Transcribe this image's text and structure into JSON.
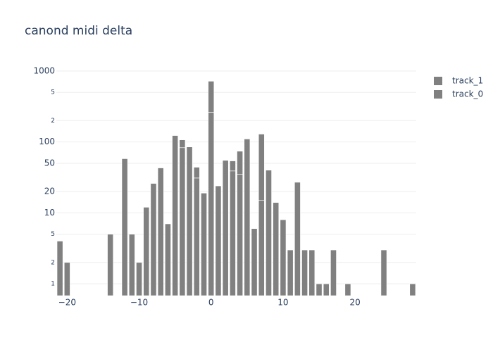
{
  "chart_data": {
    "type": "bar",
    "title": "canond midi delta",
    "x": [
      -21,
      -20,
      -14,
      -12,
      -11,
      -10,
      -9,
      -8,
      -7,
      -6,
      -5,
      -4,
      -3,
      -2,
      -1,
      0,
      1,
      2,
      3,
      4,
      5,
      6,
      7,
      8,
      9,
      10,
      11,
      12,
      13,
      14,
      15,
      16,
      17,
      19,
      24,
      28
    ],
    "series": [
      {
        "name": "track_1",
        "color": "#808080",
        "values": [
          null,
          null,
          null,
          null,
          null,
          null,
          null,
          null,
          null,
          null,
          null,
          24,
          null,
          13,
          null,
          456,
          null,
          null,
          15,
          39,
          null,
          null,
          114,
          null,
          null,
          null,
          null,
          null,
          null,
          null,
          null,
          null,
          null,
          null,
          null,
          null
        ]
      },
      {
        "name": "track_0",
        "color": "#808080",
        "values": [
          4,
          2,
          5,
          58,
          5,
          2,
          12,
          26,
          43,
          7,
          123,
          83,
          85,
          31,
          19,
          262,
          24,
          55,
          39,
          35,
          110,
          6,
          15,
          40,
          14,
          8,
          3,
          27,
          3,
          3,
          1,
          1,
          3,
          1,
          3,
          1
        ]
      }
    ],
    "stacked": true,
    "log_y": true,
    "grid": true,
    "xlim": [
      -21.5,
      28.5
    ],
    "xticks": [
      {
        "value": -20,
        "label": "−20"
      },
      {
        "value": -10,
        "label": "−10"
      },
      0,
      10,
      20
    ],
    "ylim": [
      0.68,
      1020
    ],
    "yticks": [
      1,
      2,
      5,
      10,
      20,
      50,
      100,
      {
        "value": 200,
        "label": "2"
      },
      {
        "value": 500,
        "label": "5"
      },
      1000
    ],
    "legend": "right"
  }
}
